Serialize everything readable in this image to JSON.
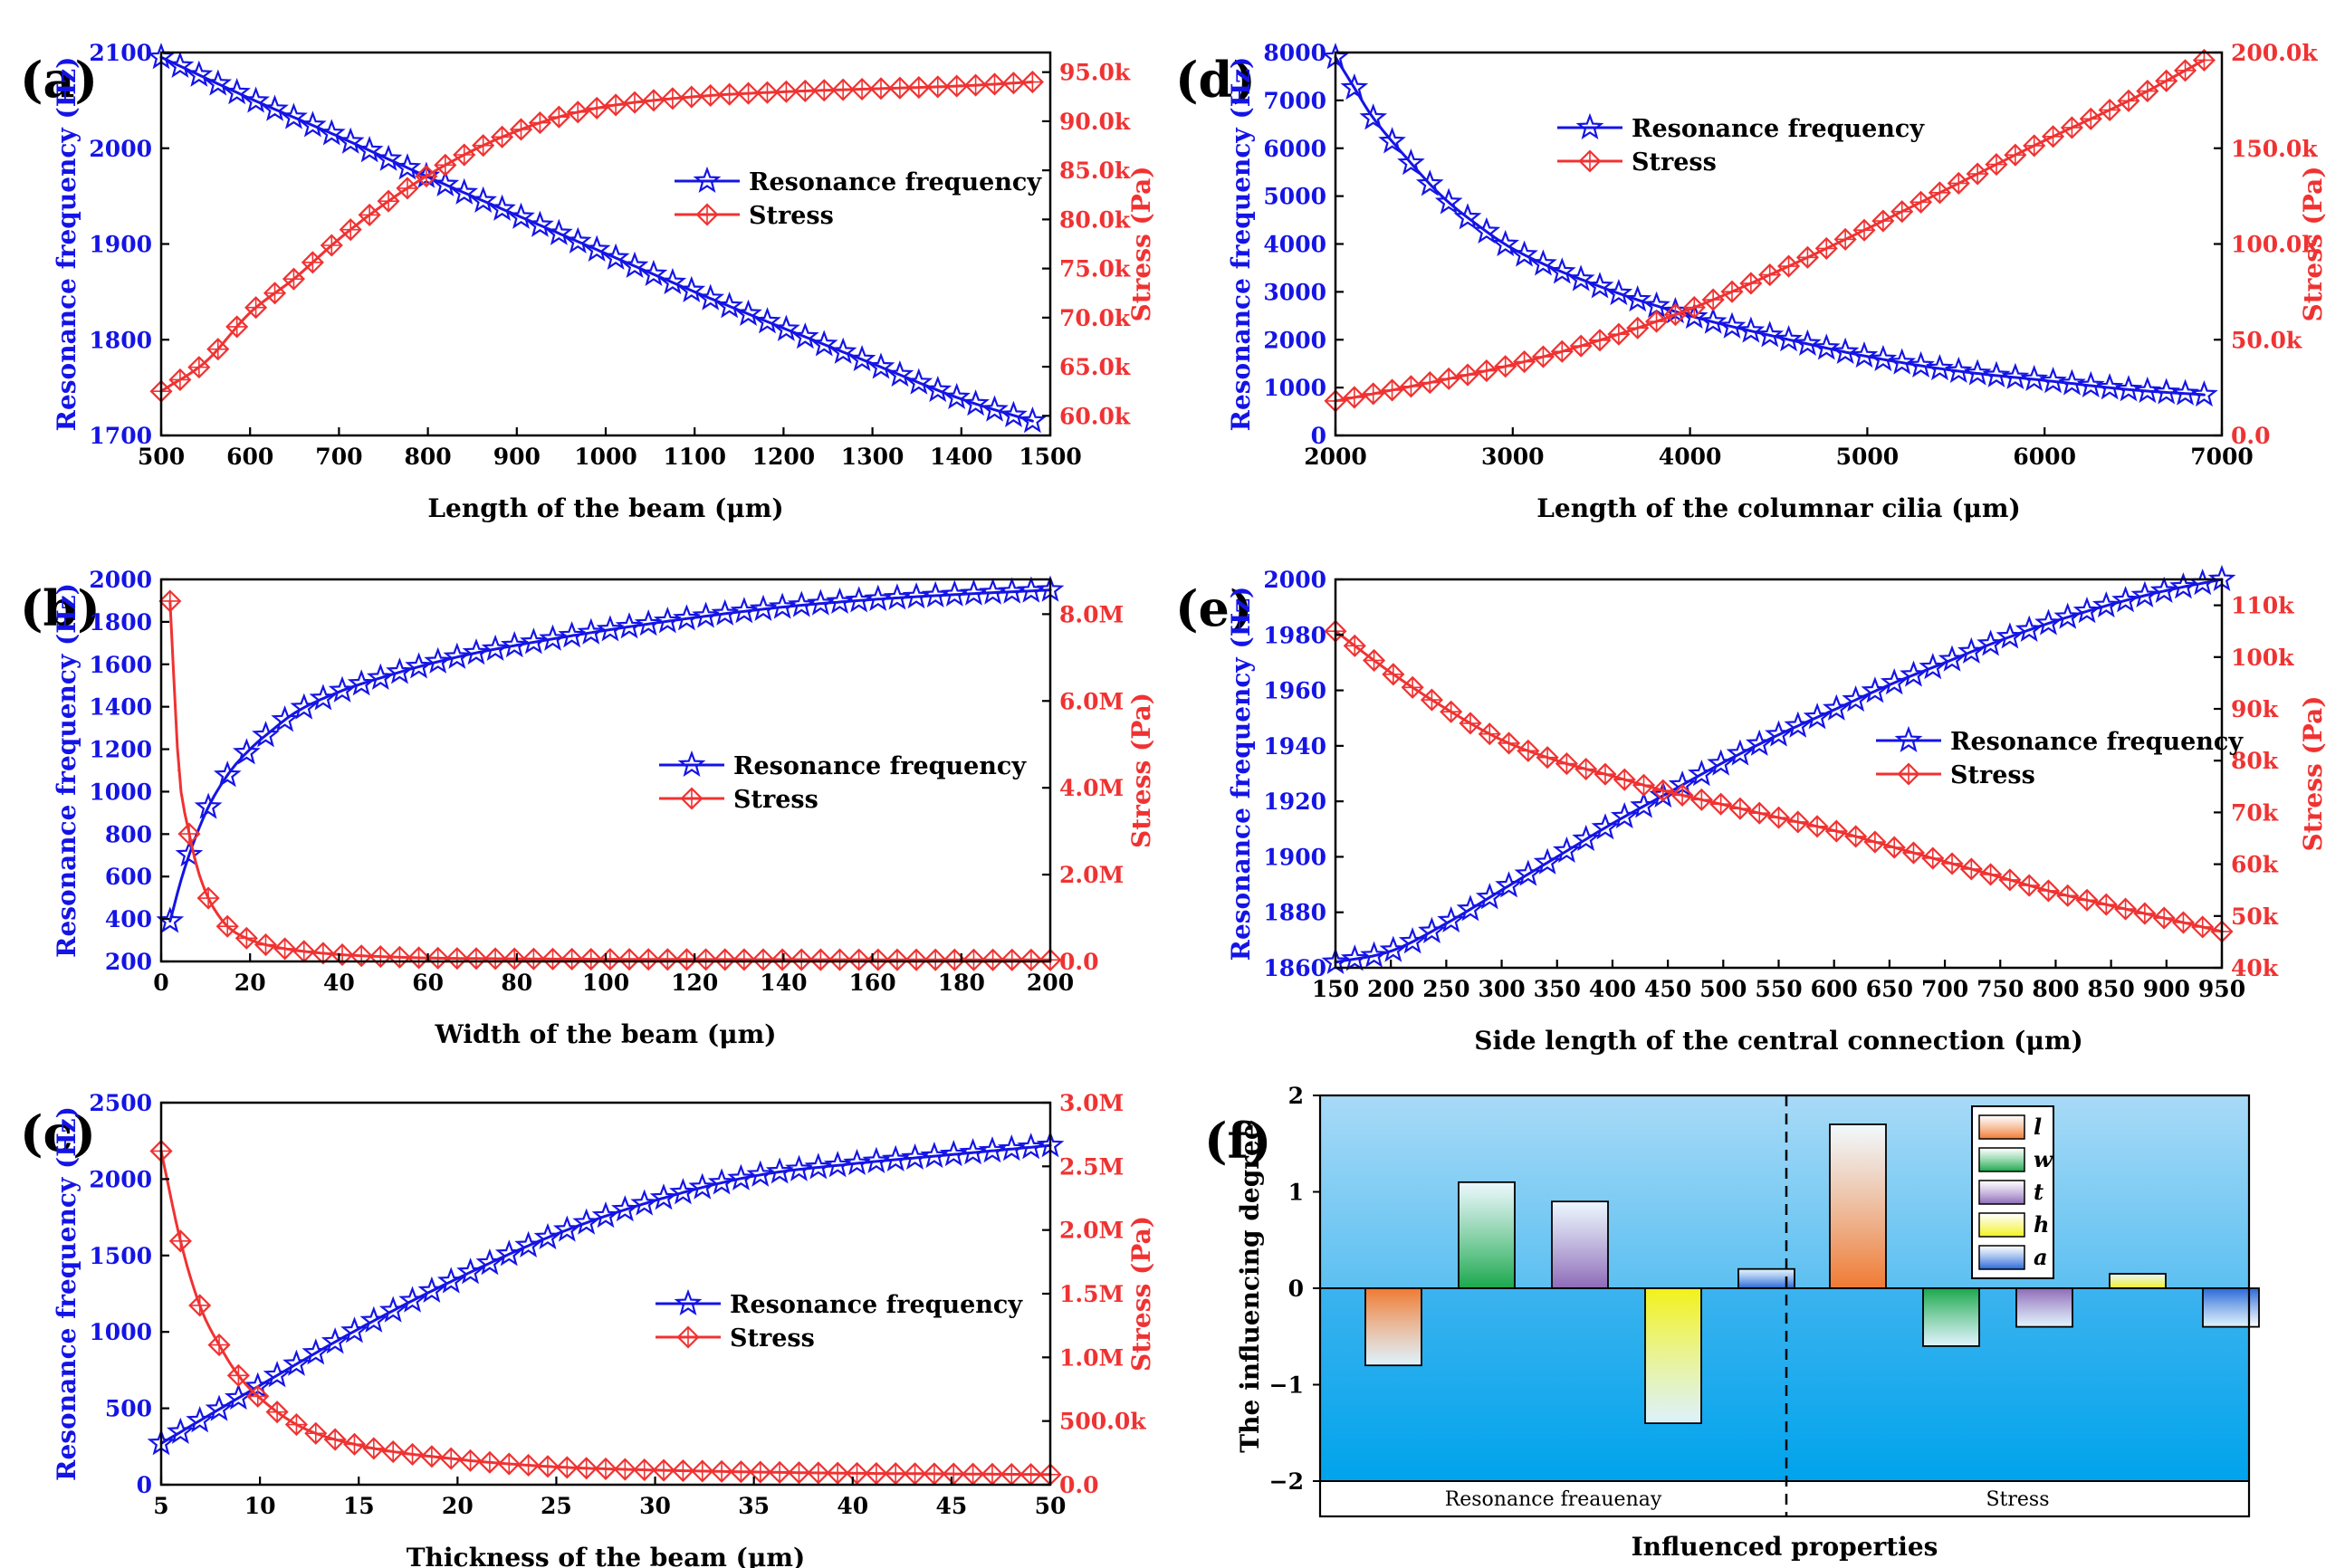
{
  "colors": {
    "frequency": "#1414e6",
    "stress": "#f03232",
    "axis": "#000000",
    "bar_l": "#f07a32",
    "bar_w": "#1aa84c",
    "bar_t": "#8e6ab8",
    "bar_h": "#f2f21a",
    "bar_a": "#2868d8",
    "bg_top": "#9fd4f5",
    "bg_bottom": "#0aa6ec"
  },
  "chart_data": [
    {
      "id": "a",
      "label": "(a)",
      "type": "line",
      "xlabel": "Length of the beam  (μm)",
      "ylabel": "Resonance frequency (Hz)",
      "y2label": "Stress (Pa)",
      "xlim": [
        500,
        1500
      ],
      "ylim": [
        1700,
        2100
      ],
      "y2lim": [
        58000,
        97000
      ],
      "xticks": [
        "500",
        "600",
        "700",
        "800",
        "900",
        "1000",
        "1100",
        "1200",
        "1300",
        "1400",
        "1500"
      ],
      "yticks": [
        "1700",
        "1800",
        "1900",
        "2000",
        "2100"
      ],
      "y2ticks": [
        "60.0k",
        "65.0k",
        "70.0k",
        "75.0k",
        "80.0k",
        "85.0k",
        "90.0k",
        "95.0k"
      ],
      "legend": [
        "Resonance frequency",
        "Stress"
      ],
      "legend_position": "center-right",
      "series": [
        {
          "name": "Resonance frequency",
          "axis": "left",
          "x": [
            500,
            600,
            700,
            800,
            900,
            1000,
            1100,
            1200,
            1300,
            1400,
            1480
          ],
          "y": [
            2095,
            2052,
            2012,
            1970,
            1930,
            1890,
            1850,
            1812,
            1775,
            1738,
            1715
          ]
        },
        {
          "name": "Stress",
          "axis": "right",
          "x": [
            500,
            550,
            600,
            650,
            700,
            750,
            800,
            850,
            900,
            950,
            1000,
            1100,
            1200,
            1300,
            1400,
            1480
          ],
          "y": [
            62500,
            65500,
            70500,
            74000,
            78000,
            81500,
            84500,
            87000,
            89000,
            90500,
            91500,
            92500,
            93000,
            93300,
            93600,
            94000
          ]
        }
      ]
    },
    {
      "id": "b",
      "label": "(b)",
      "type": "line",
      "xlabel": "Width of the  beam (μm)",
      "ylabel": "Resonance frequency (Hz)",
      "y2label": "Stress (Pa)",
      "xlim": [
        0,
        200
      ],
      "ylim": [
        200,
        2000
      ],
      "y2lim": [
        0,
        8800000
      ],
      "xticks": [
        "0",
        "20",
        "40",
        "60",
        "80",
        "100",
        "120",
        "140",
        "160",
        "180",
        "200"
      ],
      "yticks": [
        "200",
        "400",
        "600",
        "800",
        "1000",
        "1200",
        "1400",
        "1600",
        "1800",
        "2000"
      ],
      "y2ticks": [
        "0.0",
        "2.0M",
        "4.0M",
        "6.0M",
        "8.0M"
      ],
      "legend": [
        "Resonance frequency",
        "Stress"
      ],
      "legend_position": "center-right",
      "series": [
        {
          "name": "Resonance frequency",
          "axis": "left",
          "x": [
            2,
            5,
            10,
            15,
            20,
            25,
            30,
            40,
            50,
            60,
            70,
            80,
            100,
            120,
            140,
            160,
            180,
            200
          ],
          "y": [
            390,
            620,
            900,
            1080,
            1200,
            1290,
            1370,
            1470,
            1540,
            1600,
            1650,
            1690,
            1760,
            1820,
            1870,
            1905,
            1930,
            1950
          ]
        },
        {
          "name": "Stress",
          "axis": "right",
          "x": [
            2,
            4,
            6,
            8,
            10,
            12,
            15,
            20,
            25,
            30,
            40,
            50,
            60,
            80,
            100,
            150,
            200
          ],
          "y": [
            8300000,
            4400000,
            3100000,
            2200000,
            1600000,
            1200000,
            800000,
            500000,
            350000,
            260000,
            160000,
            110000,
            80000,
            60000,
            50000,
            40000,
            35000
          ]
        }
      ]
    },
    {
      "id": "c",
      "label": "(c)",
      "type": "line",
      "xlabel": "Thickness of the beam (μm)",
      "ylabel": "Resonance frequency (Hz)",
      "y2label": "Stress (Pa)",
      "xlim": [
        5,
        50
      ],
      "ylim": [
        0,
        2500
      ],
      "y2lim": [
        0,
        3000000
      ],
      "xticks": [
        "5",
        "10",
        "15",
        "20",
        "25",
        "30",
        "35",
        "40",
        "45",
        "50"
      ],
      "yticks": [
        "0",
        "500",
        "1000",
        "1500",
        "2000",
        "2500"
      ],
      "y2ticks": [
        "0.0",
        "500.0k",
        "1.0M",
        "1.5M",
        "2.0M",
        "2.5M",
        "3.0M"
      ],
      "legend": [
        "Resonance frequency",
        "Stress"
      ],
      "legend_position": "center-right",
      "series": [
        {
          "name": "Resonance frequency",
          "axis": "left",
          "x": [
            5,
            10,
            15,
            20,
            25,
            30,
            35,
            40,
            45,
            50
          ],
          "y": [
            270,
            650,
            1020,
            1350,
            1640,
            1860,
            2020,
            2100,
            2160,
            2220
          ]
        },
        {
          "name": "Stress",
          "axis": "right",
          "x": [
            5,
            6,
            7,
            8,
            9,
            10,
            12,
            15,
            20,
            25,
            30,
            35,
            40,
            45,
            50
          ],
          "y": [
            2620000,
            1900000,
            1390000,
            1080000,
            840000,
            680000,
            460000,
            310000,
            200000,
            140000,
            115000,
            100000,
            90000,
            85000,
            80000
          ]
        }
      ]
    },
    {
      "id": "d",
      "label": "(d)",
      "type": "line",
      "xlabel": "Length of the columnar cilia (μm)",
      "ylabel": "Resonance frequency (Hz)",
      "y2label": "Stress (Pa)",
      "xlim": [
        2000,
        7000
      ],
      "ylim": [
        0,
        8000
      ],
      "y2lim": [
        0,
        200000
      ],
      "xticks": [
        "2000",
        "3000",
        "4000",
        "5000",
        "6000",
        "7000"
      ],
      "yticks": [
        "0",
        "1000",
        "2000",
        "3000",
        "4000",
        "5000",
        "6000",
        "7000",
        "8000"
      ],
      "y2ticks": [
        "0.0",
        "50.0k",
        "100.0k",
        "150.0k",
        "200.0k"
      ],
      "legend": [
        "Resonance frequency",
        "Stress"
      ],
      "legend_position": "top-left",
      "series": [
        {
          "name": "Resonance frequency",
          "axis": "left",
          "x": [
            2000,
            2100,
            2200,
            2400,
            2600,
            2800,
            3000,
            3500,
            4000,
            4500,
            5000,
            5500,
            6000,
            6500,
            6900
          ],
          "y": [
            7900,
            7300,
            6700,
            5800,
            5000,
            4400,
            3900,
            3100,
            2500,
            2050,
            1650,
            1350,
            1150,
            950,
            850
          ]
        },
        {
          "name": "Stress",
          "axis": "right",
          "x": [
            2000,
            2500,
            3000,
            3500,
            4000,
            4500,
            5000,
            5500,
            6000,
            6500,
            6900
          ],
          "y": [
            18000,
            27000,
            37000,
            50000,
            66000,
            86000,
            108000,
            131000,
            154000,
            176000,
            196000
          ]
        }
      ]
    },
    {
      "id": "e",
      "label": "(e)",
      "type": "line",
      "xlabel": "Side length of the central connection (μm)",
      "ylabel": "Resonance frequency (Hz)",
      "y2label": "Stress (Pa)",
      "xlim": [
        150,
        950
      ],
      "ylim": [
        1860,
        2000
      ],
      "y2lim": [
        40000,
        115000
      ],
      "xticks": [
        "150",
        "200",
        "250",
        "300",
        "350",
        "400",
        "450",
        "500",
        "550",
        "600",
        "650",
        "700",
        "750",
        "800",
        "850",
        "900",
        "950"
      ],
      "yticks": [
        "1860",
        "1880",
        "1900",
        "1920",
        "1940",
        "1960",
        "1980",
        "2000"
      ],
      "y2ticks": [
        "40k",
        "50k",
        "60k",
        "70k",
        "80k",
        "90k",
        "100k",
        "110k"
      ],
      "legend": [
        "Resonance frequency",
        "Stress"
      ],
      "legend_position": "center-right",
      "series": [
        {
          "name": "Resonance frequency",
          "axis": "left",
          "x": [
            150,
            200,
            250,
            300,
            350,
            400,
            450,
            500,
            550,
            600,
            650,
            700,
            750,
            800,
            850,
            900,
            950
          ],
          "y": [
            1862,
            1866,
            1876,
            1888,
            1900,
            1912,
            1923,
            1934,
            1944,
            1953,
            1962,
            1970,
            1978,
            1985,
            1991,
            1996,
            2000
          ]
        },
        {
          "name": "Stress",
          "axis": "right",
          "x": [
            150,
            200,
            250,
            300,
            350,
            400,
            450,
            500,
            550,
            600,
            650,
            700,
            750,
            800,
            850,
            900,
            950
          ],
          "y": [
            105000,
            97000,
            90000,
            84000,
            80000,
            77000,
            74000,
            71500,
            69000,
            66500,
            63500,
            60500,
            57500,
            54500,
            52000,
            49500,
            47000
          ]
        }
      ]
    },
    {
      "id": "f",
      "label": "(f)",
      "type": "bar",
      "xlabel": "Influenced properties",
      "ylabel": "The influencing degree",
      "ylim": [
        -2,
        2
      ],
      "yticks": [
        "−2",
        "−1",
        "0",
        "1",
        "2"
      ],
      "groups": [
        "Resonance freauenay",
        "Stress"
      ],
      "legend": [
        "l",
        "w",
        "t",
        "h",
        "a"
      ],
      "legend_position": "top-right",
      "series": [
        {
          "name": "l",
          "values": [
            -0.8,
            1.7
          ]
        },
        {
          "name": "w",
          "values": [
            1.1,
            -0.6
          ]
        },
        {
          "name": "t",
          "values": [
            0.9,
            -0.4
          ]
        },
        {
          "name": "h",
          "values": [
            -1.4,
            0.15
          ]
        },
        {
          "name": "a",
          "values": [
            0.2,
            -0.4
          ]
        }
      ]
    }
  ]
}
